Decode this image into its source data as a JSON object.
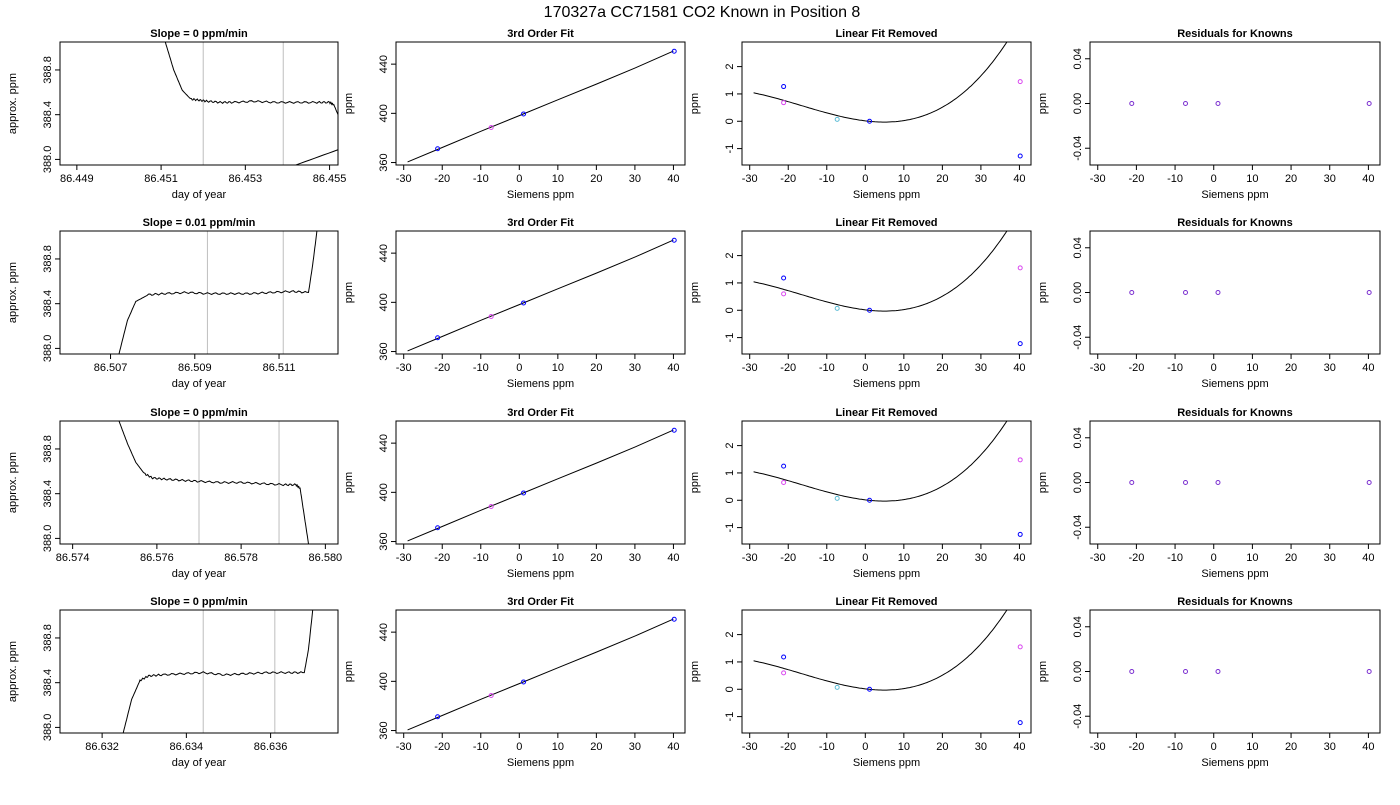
{
  "suptitle": "170327a      CC71581    CO2 Known in Position  8",
  "colors": {
    "line": "#000000",
    "vline": "#bebebe",
    "blue": "#0000ff",
    "cyan": "#5bbcd6",
    "magenta": "#d946ef",
    "purple": "#7b2fd0"
  },
  "chart_data": [
    {
      "type": "line",
      "title": "Slope =  0  ppm/min",
      "xlabel": "day of year",
      "ylabel": "approx. ppm",
      "xlim": [
        86.4486,
        86.4552
      ],
      "ylim": [
        387.95,
        389.05
      ],
      "xticks": [
        86.449,
        86.451,
        86.453,
        86.455
      ],
      "yticks": [
        388.0,
        388.4,
        388.8
      ],
      "vlines": [
        86.452,
        86.4539
      ],
      "x": [
        86.4511,
        86.4513,
        86.4515,
        86.4517,
        86.4519,
        86.4521,
        86.4524,
        86.4527,
        86.4532,
        86.4537,
        86.4542,
        86.4547,
        86.455,
        86.4551,
        86.4552,
        86.4553,
        86.4542
      ],
      "y": [
        389.05,
        388.8,
        388.62,
        388.54,
        388.53,
        388.52,
        388.51,
        388.51,
        388.52,
        388.51,
        388.51,
        388.51,
        388.51,
        388.49,
        388.4,
        388.1,
        387.95
      ]
    },
    {
      "type": "line",
      "title": "3rd Order Fit",
      "xlabel": "Siemens ppm",
      "ylabel": "ppm",
      "xlim": [
        -32,
        43
      ],
      "ylim": [
        358,
        458
      ],
      "xticks": [
        -30,
        -20,
        -10,
        0,
        10,
        20,
        30,
        40
      ],
      "yticks": [
        360,
        400,
        440
      ],
      "fit": {
        "x": [
          -29,
          -20,
          -10,
          0,
          10,
          20,
          30,
          40
        ],
        "y": [
          360.5,
          372.2,
          385.4,
          398.2,
          411.0,
          423.8,
          436.8,
          450.6
        ]
      },
      "points": {
        "x": [
          -21.2,
          -7.3,
          1.1,
          40.2
        ],
        "y": [
          371.2,
          388.5,
          399.5,
          450.5
        ]
      }
    },
    {
      "type": "line",
      "title": "Linear Fit Removed",
      "xlabel": "Siemens ppm",
      "ylabel": "ppm",
      "xlim": [
        -32,
        43
      ],
      "ylim": [
        -1.6,
        2.9
      ],
      "xticks": [
        -30,
        -20,
        -10,
        0,
        10,
        20,
        30,
        40
      ],
      "yticks": [
        -1,
        0,
        1,
        2
      ],
      "fit_coeffs": [
        0.015,
        0.0171,
        -0.0015,
        3e-05
      ],
      "points": {
        "x": [
          -21.2,
          -7.3,
          1.1,
          40.2
        ],
        "y": [
          1.27,
          0.07,
          0.0,
          -1.27
        ]
      },
      "raw": {
        "x": [
          -21.2,
          40.2
        ],
        "y": [
          0.68,
          1.45
        ]
      }
    },
    {
      "type": "scatter",
      "title": "Residuals for Knowns",
      "xlabel": "Siemens ppm",
      "ylabel": "ppm",
      "xlim": [
        -32,
        43
      ],
      "ylim": [
        -0.055,
        0.055
      ],
      "xticks": [
        -30,
        -20,
        -10,
        0,
        10,
        20,
        30,
        40
      ],
      "yticks": [
        -0.04,
        0.0,
        0.04
      ],
      "x": [
        -21.2,
        -7.3,
        1.1,
        40.2
      ],
      "y": [
        0,
        0,
        0,
        0
      ]
    },
    {
      "type": "line",
      "title": "Slope =  0.01  ppm/min",
      "xlabel": "day of year",
      "ylabel": "approx. ppm",
      "xlim": [
        86.5058,
        86.5124
      ],
      "ylim": [
        387.95,
        389.05
      ],
      "xticks": [
        86.507,
        86.509,
        86.511
      ],
      "yticks": [
        388.0,
        388.4,
        388.8
      ],
      "vlines": [
        86.5093,
        86.5111
      ],
      "x": [
        86.5072,
        86.5074,
        86.5076,
        86.5079,
        86.5083,
        86.5088,
        86.5093,
        86.5098,
        86.5103,
        86.5108,
        86.5113,
        86.5117,
        86.5118,
        86.5119
      ],
      "y": [
        387.95,
        388.25,
        388.42,
        388.48,
        388.49,
        388.5,
        388.49,
        388.49,
        388.49,
        388.5,
        388.51,
        388.5,
        388.75,
        389.05
      ]
    },
    {
      "type": "line",
      "title": "3rd Order Fit",
      "xlabel": "Siemens ppm",
      "ylabel": "ppm",
      "xlim": [
        -32,
        43
      ],
      "ylim": [
        358,
        458
      ],
      "xticks": [
        -30,
        -20,
        -10,
        0,
        10,
        20,
        30,
        40
      ],
      "yticks": [
        360,
        400,
        440
      ],
      "fit": {
        "x": [
          -29,
          -20,
          -10,
          0,
          10,
          20,
          30,
          40
        ],
        "y": [
          360.5,
          372.2,
          385.4,
          398.2,
          411.0,
          423.8,
          436.8,
          450.6
        ]
      },
      "points": {
        "x": [
          -21.2,
          -7.3,
          1.1,
          40.2
        ],
        "y": [
          371.2,
          388.5,
          399.5,
          450.5
        ]
      }
    },
    {
      "type": "line",
      "title": "Linear Fit Removed",
      "xlabel": "Siemens ppm",
      "ylabel": "ppm",
      "xlim": [
        -32,
        43
      ],
      "ylim": [
        -1.6,
        2.9
      ],
      "xticks": [
        -30,
        -20,
        -10,
        0,
        10,
        20,
        30,
        40
      ],
      "yticks": [
        -1,
        0,
        1,
        2
      ],
      "fit_coeffs": [
        0.015,
        0.0171,
        -0.0015,
        3e-05
      ],
      "points": {
        "x": [
          -21.2,
          -7.3,
          1.1,
          40.2
        ],
        "y": [
          1.18,
          0.07,
          0.0,
          -1.22
        ]
      },
      "raw": {
        "x": [
          -21.2,
          40.2
        ],
        "y": [
          0.6,
          1.55
        ]
      }
    },
    {
      "type": "scatter",
      "title": "Residuals for Knowns",
      "xlabel": "Siemens ppm",
      "ylabel": "ppm",
      "xlim": [
        -32,
        43
      ],
      "ylim": [
        -0.055,
        0.055
      ],
      "xticks": [
        -30,
        -20,
        -10,
        0,
        10,
        20,
        30,
        40
      ],
      "yticks": [
        -0.04,
        0.0,
        0.04
      ],
      "x": [
        -21.2,
        -7.3,
        1.1,
        40.2
      ],
      "y": [
        0,
        0,
        0,
        0
      ]
    },
    {
      "type": "line",
      "title": "Slope =  0  ppm/min",
      "xlabel": "day of year",
      "ylabel": "approx. ppm",
      "xlim": [
        86.5737,
        86.5803
      ],
      "ylim": [
        387.95,
        389.05
      ],
      "xticks": [
        86.574,
        86.576,
        86.578,
        86.58
      ],
      "xtick_labels": [
        "86.574",
        "86.576",
        "86.578",
        "86.580"
      ],
      "yticks": [
        388.0,
        388.4,
        388.8
      ],
      "vlines": [
        86.577,
        86.5789
      ],
      "x": [
        86.5751,
        86.5753,
        86.5755,
        86.5757,
        86.5759,
        86.5762,
        86.5766,
        86.577,
        86.5775,
        86.578,
        86.5785,
        86.579,
        86.5793,
        86.5794,
        86.5795,
        86.5796
      ],
      "y": [
        389.05,
        388.85,
        388.68,
        388.58,
        388.54,
        388.53,
        388.52,
        388.51,
        388.5,
        388.5,
        388.49,
        388.48,
        388.48,
        388.45,
        388.2,
        387.95
      ]
    },
    {
      "type": "line",
      "title": "3rd Order Fit",
      "xlabel": "Siemens ppm",
      "ylabel": "ppm",
      "xlim": [
        -32,
        43
      ],
      "ylim": [
        358,
        458
      ],
      "xticks": [
        -30,
        -20,
        -10,
        0,
        10,
        20,
        30,
        40
      ],
      "yticks": [
        360,
        400,
        440
      ],
      "fit": {
        "x": [
          -29,
          -20,
          -10,
          0,
          10,
          20,
          30,
          40
        ],
        "y": [
          360.5,
          372.2,
          385.4,
          398.2,
          411.0,
          423.8,
          436.8,
          450.6
        ]
      },
      "points": {
        "x": [
          -21.2,
          -7.3,
          1.1,
          40.2
        ],
        "y": [
          371.2,
          388.5,
          399.5,
          450.5
        ]
      }
    },
    {
      "type": "line",
      "title": "Linear Fit Removed",
      "xlabel": "Siemens ppm",
      "ylabel": "ppm",
      "xlim": [
        -32,
        43
      ],
      "ylim": [
        -1.6,
        2.9
      ],
      "xticks": [
        -30,
        -20,
        -10,
        0,
        10,
        20,
        30,
        40
      ],
      "yticks": [
        -1,
        0,
        1,
        2
      ],
      "fit_coeffs": [
        0.015,
        0.0171,
        -0.0015,
        3e-05
      ],
      "points": {
        "x": [
          -21.2,
          -7.3,
          1.1,
          40.2
        ],
        "y": [
          1.25,
          0.07,
          0.0,
          -1.25
        ]
      },
      "raw": {
        "x": [
          -21.2,
          40.2
        ],
        "y": [
          0.65,
          1.48
        ]
      }
    },
    {
      "type": "scatter",
      "title": "Residuals for Knowns",
      "xlabel": "Siemens ppm",
      "ylabel": "ppm",
      "xlim": [
        -32,
        43
      ],
      "ylim": [
        -0.055,
        0.055
      ],
      "xticks": [
        -30,
        -20,
        -10,
        0,
        10,
        20,
        30,
        40
      ],
      "yticks": [
        -0.04,
        0.0,
        0.04
      ],
      "x": [
        -21.2,
        -7.3,
        1.1,
        40.2
      ],
      "y": [
        0,
        0,
        0,
        0
      ]
    },
    {
      "type": "line",
      "title": "Slope =  0  ppm/min",
      "xlabel": "day of year",
      "ylabel": "approx. ppm",
      "xlim": [
        86.631,
        86.6376
      ],
      "ylim": [
        387.95,
        389.05
      ],
      "xticks": [
        86.632,
        86.634,
        86.636
      ],
      "yticks": [
        388.0,
        388.4,
        388.8
      ],
      "vlines": [
        86.6344,
        86.6361
      ],
      "x": [
        86.6325,
        86.6327,
        86.6329,
        86.6331,
        86.6334,
        86.6339,
        86.6344,
        86.6349,
        86.6354,
        86.6359,
        86.6364,
        86.6368,
        86.6369,
        86.637
      ],
      "y": [
        387.95,
        388.25,
        388.42,
        388.46,
        388.47,
        388.48,
        388.49,
        388.47,
        388.48,
        388.49,
        388.49,
        388.49,
        388.7,
        389.05
      ]
    },
    {
      "type": "line",
      "title": "3rd Order Fit",
      "xlabel": "Siemens ppm",
      "ylabel": "ppm",
      "xlim": [
        -32,
        43
      ],
      "ylim": [
        358,
        458
      ],
      "xticks": [
        -30,
        -20,
        -10,
        0,
        10,
        20,
        30,
        40
      ],
      "yticks": [
        360,
        400,
        440
      ],
      "fit": {
        "x": [
          -29,
          -20,
          -10,
          0,
          10,
          20,
          30,
          40
        ],
        "y": [
          360.5,
          372.2,
          385.4,
          398.2,
          411.0,
          423.8,
          436.8,
          450.6
        ]
      },
      "points": {
        "x": [
          -21.2,
          -7.3,
          1.1,
          40.2
        ],
        "y": [
          371.2,
          388.5,
          399.5,
          450.5
        ]
      }
    },
    {
      "type": "line",
      "title": "Linear Fit Removed",
      "xlabel": "Siemens ppm",
      "ylabel": "ppm",
      "xlim": [
        -32,
        43
      ],
      "ylim": [
        -1.6,
        2.9
      ],
      "xticks": [
        -30,
        -20,
        -10,
        0,
        10,
        20,
        30,
        40
      ],
      "yticks": [
        -1,
        0,
        1,
        2
      ],
      "fit_coeffs": [
        0.015,
        0.0171,
        -0.0015,
        3e-05
      ],
      "points": {
        "x": [
          -21.2,
          -7.3,
          1.1,
          40.2
        ],
        "y": [
          1.18,
          0.07,
          0.0,
          -1.22
        ]
      },
      "raw": {
        "x": [
          -21.2,
          40.2
        ],
        "y": [
          0.6,
          1.55
        ]
      }
    },
    {
      "type": "scatter",
      "title": "Residuals for Knowns",
      "xlabel": "Siemens ppm",
      "ylabel": "ppm",
      "xlim": [
        -32,
        43
      ],
      "ylim": [
        -0.055,
        0.055
      ],
      "xticks": [
        -30,
        -20,
        -10,
        0,
        10,
        20,
        30,
        40
      ],
      "yticks": [
        -0.04,
        0.0,
        0.04
      ],
      "x": [
        -21.2,
        -7.3,
        1.1,
        40.2
      ],
      "y": [
        0,
        0,
        0,
        0
      ]
    }
  ]
}
